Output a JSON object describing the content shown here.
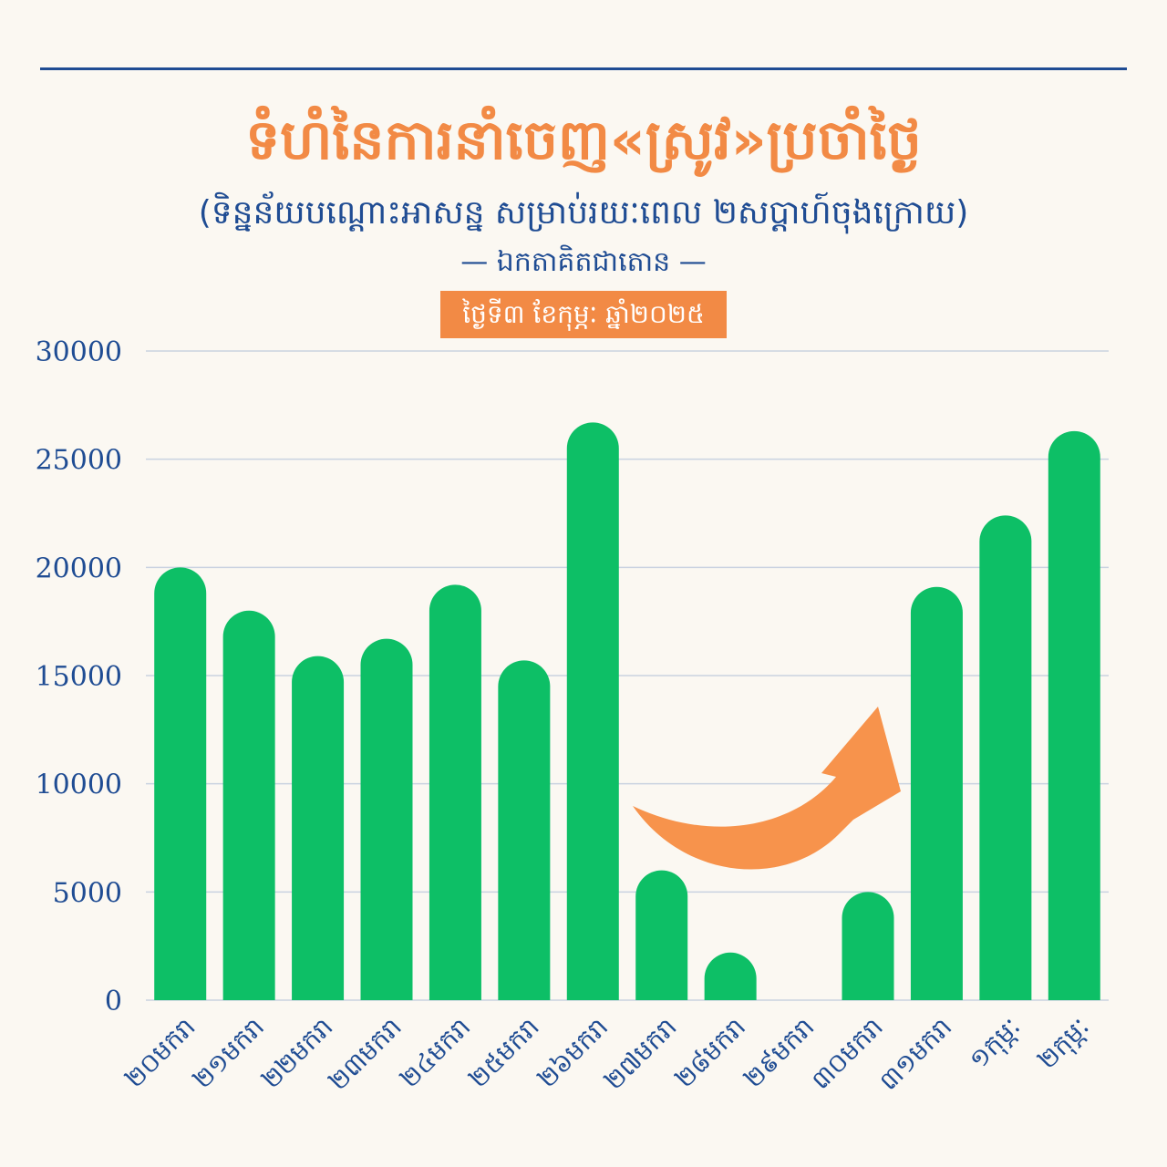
{
  "header": {
    "title": "ទំហំនៃការនាំចេញ«ស្រូវ»ប្រចាំថ្ងៃ",
    "subtitle": "(ទិន្នន័យបណ្តោះអាសន្ន សម្រាប់រយៈពេល ២សប្តាហ៍ចុងក្រោយ)",
    "unit": "— ឯកតាគិតជាតោន —",
    "date_badge": "ថ្ងៃទី៣ ខែកុម្ភៈ ឆ្នាំ២០២៥"
  },
  "colors": {
    "background": "#fbf8f2",
    "title": "#f28a45",
    "text": "#1f4c93",
    "bar": "#0dbf66",
    "badge": "#f28a45",
    "grid": "#c9d2e0",
    "arrow": "#f7934c"
  },
  "chart_data": {
    "type": "bar",
    "categories": [
      "២០មករា",
      "២១មករា",
      "២២មករា",
      "២៣មករា",
      "២៤មករា",
      "២៥មករា",
      "២៦មករា",
      "២៧មករា",
      "២៨មករា",
      "២៩មករា",
      "៣០មករា",
      "៣១មករា",
      "១កុម្ភៈ",
      "២កុម្ភៈ"
    ],
    "values": [
      20000,
      18000,
      15900,
      16700,
      19200,
      15700,
      26700,
      6000,
      2200,
      0,
      5000,
      19100,
      22400,
      26300
    ],
    "ylim": [
      0,
      30000
    ],
    "yticks": [
      "0",
      "5000",
      "10000",
      "15000",
      "20000",
      "25000",
      "30000"
    ],
    "grid": true,
    "annotation": "upward-trend-arrow"
  }
}
